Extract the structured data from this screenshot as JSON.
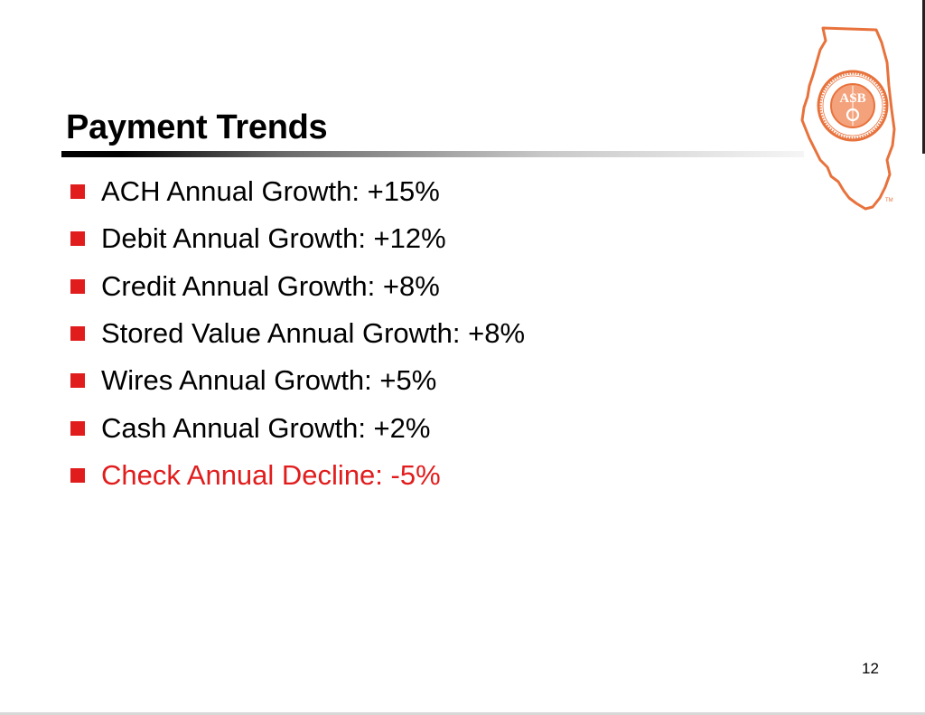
{
  "slide": {
    "title": "Payment Trends",
    "page_number": "12",
    "bullets": [
      {
        "text": "ACH Annual Growth: +15%",
        "highlight": false
      },
      {
        "text": "Debit Annual Growth: +12%",
        "highlight": false
      },
      {
        "text": "Credit Annual Growth: +8%",
        "highlight": false
      },
      {
        "text": "Stored Value Annual Growth: +8%",
        "highlight": false
      },
      {
        "text": "Wires Annual Growth: +5%",
        "highlight": false
      },
      {
        "text": "Cash Annual Growth: +2%",
        "highlight": false
      },
      {
        "text": "Check Annual Decline: -5%",
        "highlight": true
      }
    ]
  },
  "logo": {
    "icon": "illinois-asbo-logo-icon",
    "monogram": "ASBO",
    "ring_text": "ILLINOIS ASSOCIATION OF SCHOOL BUSINESS OFFICIALS",
    "mark": "TM"
  },
  "colors": {
    "bullet": "#e11c1c",
    "highlight_text": "#e11c1c",
    "logo_orange": "#e8723c",
    "logo_fill": "#f4a27c"
  }
}
